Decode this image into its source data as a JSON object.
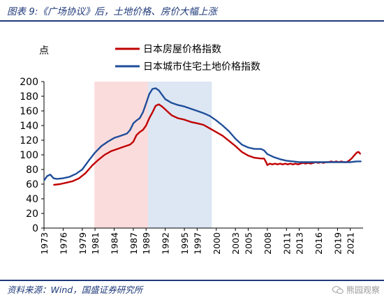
{
  "header": {
    "title": "图表 9:《广场协议》后，土地价格、房价大幅上涨"
  },
  "footer": {
    "source": "资料来源：Wind，国盛证券研究所",
    "watermark": "熊园观察"
  },
  "chart_data": {
    "type": "line",
    "ylabel": "点",
    "ylim": [
      0,
      200
    ],
    "yticks": [
      0,
      20,
      40,
      60,
      80,
      100,
      120,
      140,
      160,
      180,
      200
    ],
    "xlim": [
      1973,
      2023
    ],
    "xticks": [
      1973,
      1976,
      1979,
      1981,
      1984,
      1987,
      1989,
      1992,
      1995,
      1997,
      2000,
      2003,
      2005,
      2008,
      2011,
      2013,
      2016,
      2019,
      2021
    ],
    "grid": false,
    "legend_position": "top-center",
    "shaded_periods": [
      {
        "from": 1980.9,
        "to": 1989.3,
        "color": "#fbdcdc"
      },
      {
        "from": 1989.3,
        "to": 1999.3,
        "color": "#dde6f3"
      }
    ],
    "series": [
      {
        "name": "日本房屋价格指数",
        "color": "#c00000",
        "points": [
          [
            1974.5,
            59
          ],
          [
            1975.5,
            60
          ],
          [
            1976.5,
            62
          ],
          [
            1977.5,
            64
          ],
          [
            1978.5,
            68
          ],
          [
            1979.5,
            75
          ],
          [
            1980.5,
            85
          ],
          [
            1981.5,
            93
          ],
          [
            1982.5,
            100
          ],
          [
            1983.5,
            105
          ],
          [
            1984.5,
            108
          ],
          [
            1985.5,
            111
          ],
          [
            1986.5,
            114
          ],
          [
            1987.0,
            118
          ],
          [
            1987.5,
            127
          ],
          [
            1988.0,
            131
          ],
          [
            1988.5,
            134
          ],
          [
            1989.0,
            140
          ],
          [
            1989.5,
            150
          ],
          [
            1990.0,
            158
          ],
          [
            1990.5,
            167
          ],
          [
            1991.0,
            169
          ],
          [
            1991.5,
            166
          ],
          [
            1992.0,
            162
          ],
          [
            1992.5,
            158
          ],
          [
            1993.0,
            154
          ],
          [
            1994.0,
            150
          ],
          [
            1995.0,
            148
          ],
          [
            1996.0,
            145
          ],
          [
            1997.0,
            143
          ],
          [
            1998.0,
            141
          ],
          [
            1999.0,
            136
          ],
          [
            2000.0,
            131
          ],
          [
            2001.0,
            126
          ],
          [
            2002.0,
            119
          ],
          [
            2003.0,
            112
          ],
          [
            2004.0,
            104
          ],
          [
            2005.0,
            99
          ],
          [
            2006.0,
            96
          ],
          [
            2007.0,
            95
          ],
          [
            2007.5,
            95
          ],
          [
            2007.8,
            90
          ],
          [
            2008.0,
            86
          ],
          [
            2008.4,
            88
          ],
          [
            2008.8,
            87
          ],
          [
            2009.2,
            88
          ],
          [
            2009.6,
            87
          ],
          [
            2010.0,
            88
          ],
          [
            2010.4,
            87
          ],
          [
            2010.8,
            88
          ],
          [
            2011.2,
            87
          ],
          [
            2011.6,
            88
          ],
          [
            2012.0,
            87
          ],
          [
            2012.4,
            88
          ],
          [
            2012.8,
            87
          ],
          [
            2013.2,
            88
          ],
          [
            2013.6,
            89
          ],
          [
            2014.0,
            88
          ],
          [
            2014.4,
            89
          ],
          [
            2014.8,
            88
          ],
          [
            2015.2,
            89
          ],
          [
            2015.6,
            90
          ],
          [
            2016.0,
            89
          ],
          [
            2016.4,
            90
          ],
          [
            2016.8,
            89
          ],
          [
            2017.2,
            90
          ],
          [
            2017.6,
            90
          ],
          [
            2018.0,
            91
          ],
          [
            2018.4,
            90
          ],
          [
            2018.8,
            91
          ],
          [
            2019.2,
            90
          ],
          [
            2019.6,
            91
          ],
          [
            2020.0,
            90
          ],
          [
            2020.4,
            90
          ],
          [
            2020.8,
            92
          ],
          [
            2021.2,
            95
          ],
          [
            2021.6,
            99
          ],
          [
            2022.0,
            103
          ],
          [
            2022.3,
            104
          ],
          [
            2022.6,
            101
          ]
        ]
      },
      {
        "name": "日本城市住宅土地价格指数",
        "color": "#1f4e9a",
        "points": [
          [
            1973.0,
            65
          ],
          [
            1973.5,
            71
          ],
          [
            1974.0,
            73
          ],
          [
            1974.5,
            68
          ],
          [
            1975.0,
            67
          ],
          [
            1976.0,
            68
          ],
          [
            1977.0,
            70
          ],
          [
            1978.0,
            74
          ],
          [
            1979.0,
            80
          ],
          [
            1980.0,
            92
          ],
          [
            1981.0,
            103
          ],
          [
            1982.0,
            112
          ],
          [
            1983.0,
            118
          ],
          [
            1984.0,
            123
          ],
          [
            1985.0,
            126
          ],
          [
            1986.0,
            129
          ],
          [
            1986.5,
            134
          ],
          [
            1987.0,
            143
          ],
          [
            1987.5,
            147
          ],
          [
            1988.0,
            150
          ],
          [
            1988.5,
            158
          ],
          [
            1989.0,
            170
          ],
          [
            1989.5,
            183
          ],
          [
            1990.0,
            190
          ],
          [
            1990.5,
            191
          ],
          [
            1991.0,
            188
          ],
          [
            1991.5,
            182
          ],
          [
            1992.0,
            176
          ],
          [
            1993.0,
            171
          ],
          [
            1994.0,
            168
          ],
          [
            1995.0,
            166
          ],
          [
            1996.0,
            163
          ],
          [
            1997.0,
            160
          ],
          [
            1998.0,
            157
          ],
          [
            1999.0,
            153
          ],
          [
            2000.0,
            147
          ],
          [
            2001.0,
            140
          ],
          [
            2002.0,
            132
          ],
          [
            2003.0,
            122
          ],
          [
            2004.0,
            114
          ],
          [
            2005.0,
            110
          ],
          [
            2006.0,
            108
          ],
          [
            2007.0,
            108
          ],
          [
            2007.5,
            106
          ],
          [
            2008.0,
            101
          ],
          [
            2009.0,
            97
          ],
          [
            2010.0,
            94
          ],
          [
            2011.0,
            92
          ],
          [
            2012.0,
            91
          ],
          [
            2013.0,
            90
          ],
          [
            2014.0,
            90
          ],
          [
            2015.0,
            90
          ],
          [
            2016.0,
            90
          ],
          [
            2017.0,
            90
          ],
          [
            2018.0,
            90
          ],
          [
            2019.0,
            90
          ],
          [
            2020.0,
            90
          ],
          [
            2021.0,
            90
          ],
          [
            2022.0,
            91
          ],
          [
            2022.7,
            91
          ]
        ]
      }
    ]
  }
}
